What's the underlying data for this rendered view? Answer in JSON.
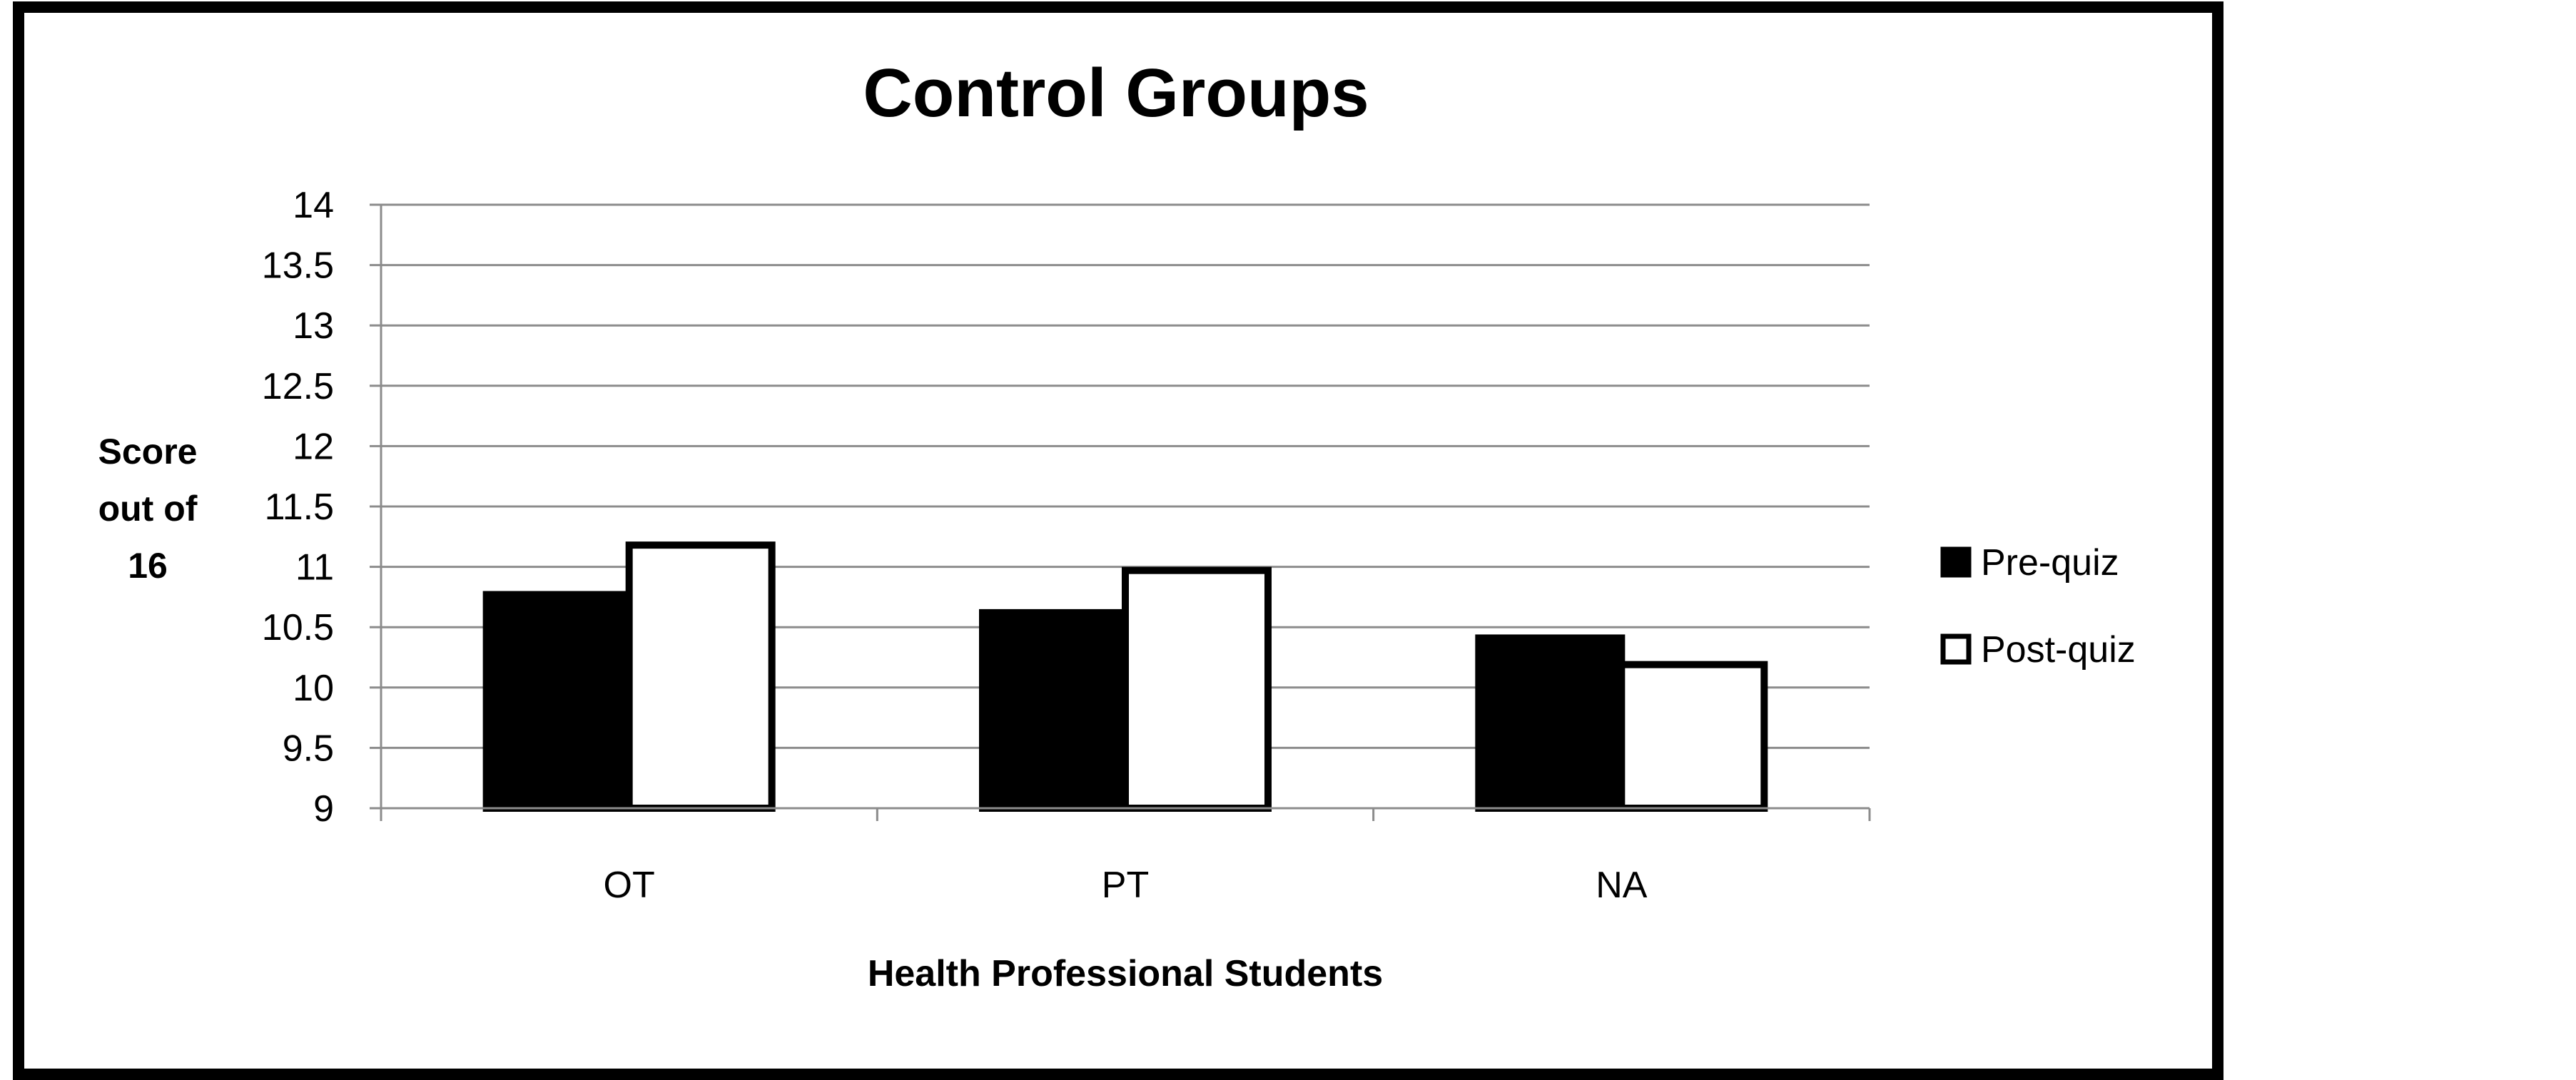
{
  "chart_data": {
    "type": "bar",
    "title": "Control Groups",
    "xlabel": "Health Professional Students",
    "ylabel": [
      "Score",
      "out of",
      "16"
    ],
    "ylim": [
      9,
      14
    ],
    "yticks": [
      "9",
      "9.5",
      "10",
      "10.5",
      "11",
      "11.5",
      "12",
      "12.5",
      "13",
      "13.5",
      "14"
    ],
    "categories": [
      "OT",
      "PT",
      "NA"
    ],
    "series": [
      {
        "name": "Pre-quiz",
        "values": [
          10.77,
          10.62,
          10.41
        ],
        "fill": "#000000"
      },
      {
        "name": "Post-quiz",
        "values": [
          11.18,
          10.97,
          10.19
        ],
        "fill": "#ffffff"
      }
    ],
    "grid": true,
    "legend_position": "right"
  }
}
